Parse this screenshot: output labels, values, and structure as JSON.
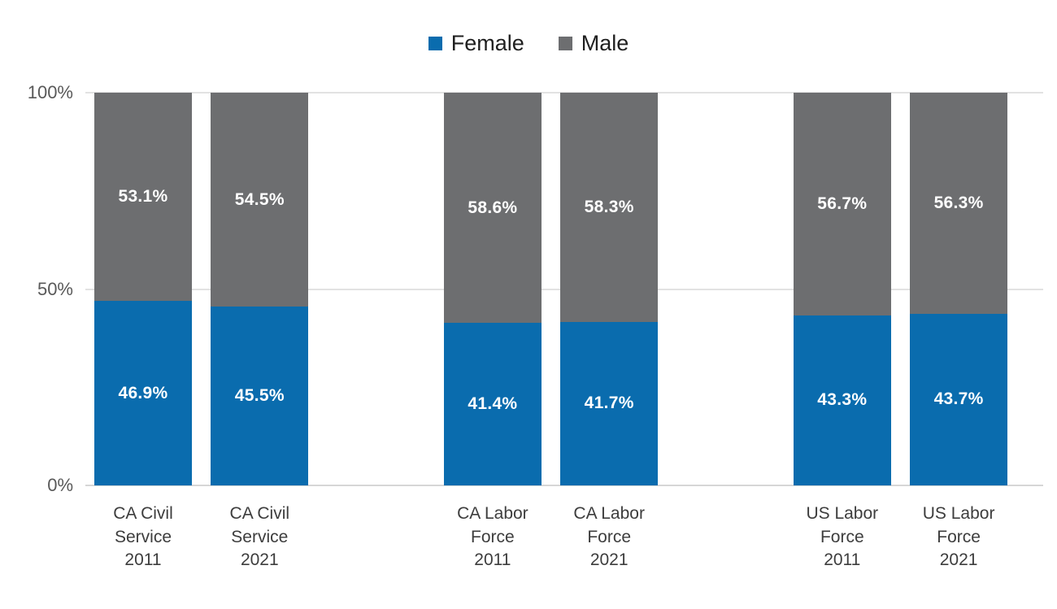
{
  "chart_data": {
    "type": "bar",
    "stacked": true,
    "percent_stacked": true,
    "title": "",
    "xlabel": "",
    "ylabel": "",
    "ylim": [
      0,
      100
    ],
    "grid": true,
    "legend_position": "top",
    "categories": [
      "CA Civil\nService\n2011",
      "CA Civil\nService\n2021",
      "CA Labor\nForce\n2011",
      "CA Labor\nForce\n2021",
      "US Labor\nForce\n2011",
      "US Labor\nForce\n2021"
    ],
    "series": [
      {
        "name": "Female",
        "color": "#0a6cae",
        "values": [
          46.9,
          45.5,
          41.4,
          41.7,
          43.3,
          43.7
        ],
        "labels": [
          "46.9%",
          "45.5%",
          "41.4%",
          "41.7%",
          "43.3%",
          "43.7%"
        ]
      },
      {
        "name": "Male",
        "color": "#6d6e70",
        "values": [
          53.1,
          54.5,
          58.6,
          58.3,
          56.7,
          56.3
        ],
        "labels": [
          "53.1%",
          "54.5%",
          "58.6%",
          "58.3%",
          "56.7%",
          "56.3%"
        ]
      }
    ],
    "y_ticks": [
      {
        "value": 100,
        "label": "100%"
      },
      {
        "value": 50,
        "label": "50%"
      },
      {
        "value": 0,
        "label": "0%"
      }
    ],
    "colors": {
      "gridline": "#e2e2e2",
      "axis_line": "#d6d6d6",
      "y_tick_text": "#595959",
      "x_tick_text": "#3d3d3d",
      "data_label_text": "#ffffff",
      "background": "#ffffff"
    }
  }
}
